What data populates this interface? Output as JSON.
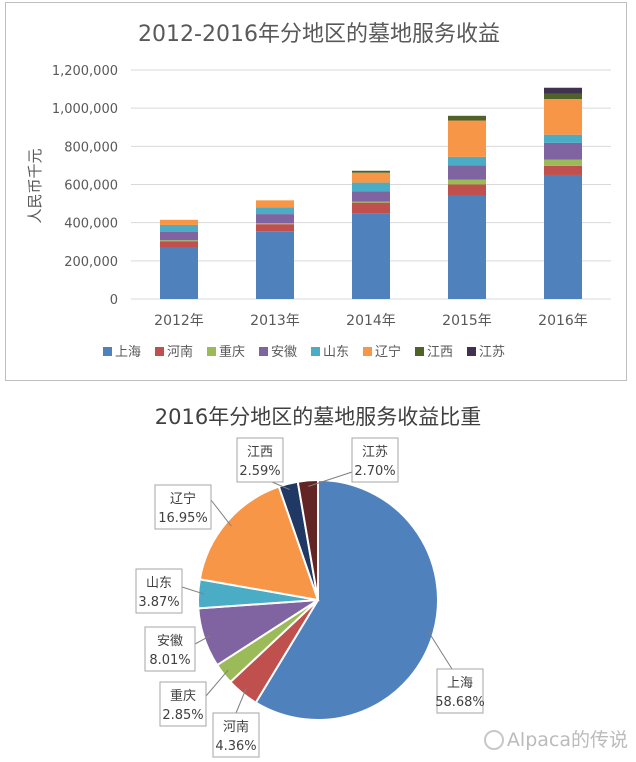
{
  "chart_data": [
    {
      "type": "bar",
      "stacked": true,
      "title": "2012-2016年分地区的墓地服务收益",
      "ylabel": "人民币千元",
      "xlabel": "",
      "ylim": [
        0,
        1200000
      ],
      "yticks": [
        "0",
        "200,000",
        "400,000",
        "600,000",
        "800,000",
        "1,000,000",
        "1,200,000"
      ],
      "ytick_values": [
        0,
        200000,
        400000,
        600000,
        800000,
        1000000,
        1200000
      ],
      "grid": true,
      "legend_position": "bottom",
      "categories": [
        "2012年",
        "2013年",
        "2014年",
        "2015年",
        "2016年"
      ],
      "series": [
        {
          "name": "上海",
          "color": "#4f81bd",
          "values": [
            270000,
            355000,
            450000,
            540000,
            650000
          ]
        },
        {
          "name": "河南",
          "color": "#c0504d",
          "values": [
            33000,
            37000,
            55000,
            60000,
            48000
          ]
        },
        {
          "name": "重庆",
          "color": "#9bbb59",
          "values": [
            5000,
            5000,
            5000,
            25000,
            32000
          ]
        },
        {
          "name": "安徽",
          "color": "#8064a2",
          "values": [
            45000,
            48000,
            55000,
            75000,
            88000
          ]
        },
        {
          "name": "山东",
          "color": "#4bacc6",
          "values": [
            35000,
            35000,
            45000,
            45000,
            43000
          ]
        },
        {
          "name": "辽宁",
          "color": "#f79646",
          "values": [
            27000,
            37000,
            52000,
            190000,
            187000
          ]
        },
        {
          "name": "江西",
          "color": "#4f6228",
          "values": [
            0,
            0,
            10000,
            25000,
            29000
          ]
        },
        {
          "name": "江苏",
          "color": "#403151",
          "values": [
            0,
            0,
            0,
            0,
            30000
          ]
        }
      ]
    },
    {
      "type": "pie",
      "title": "2016年分地区的墓地服务收益比重",
      "slices": [
        {
          "name": "上海",
          "label": "上海",
          "pct_label": "58.68%",
          "value": 58.68,
          "color": "#4f81bd"
        },
        {
          "name": "河南",
          "label": "河南",
          "pct_label": "4.36%",
          "value": 4.36,
          "color": "#c0504d"
        },
        {
          "name": "重庆",
          "label": "重庆",
          "pct_label": "2.85%",
          "value": 2.85,
          "color": "#9bbb59"
        },
        {
          "name": "安徽",
          "label": "安徽",
          "pct_label": "8.01%",
          "value": 8.01,
          "color": "#8064a2"
        },
        {
          "name": "山东",
          "label": "山东",
          "pct_label": "3.87%",
          "value": 3.87,
          "color": "#4bacc6"
        },
        {
          "name": "辽宁",
          "label": "辽宁",
          "pct_label": "16.95%",
          "value": 16.95,
          "color": "#f79646"
        },
        {
          "name": "江西",
          "label": "江西",
          "pct_label": "2.59%",
          "value": 2.59,
          "color": "#1f3864"
        },
        {
          "name": "江苏",
          "label": "江苏",
          "pct_label": "2.70%",
          "value": 2.7,
          "color": "#632523"
        }
      ]
    }
  ],
  "watermark": {
    "icon": "weibo-logo-icon",
    "text": "Alpaca的传说"
  }
}
